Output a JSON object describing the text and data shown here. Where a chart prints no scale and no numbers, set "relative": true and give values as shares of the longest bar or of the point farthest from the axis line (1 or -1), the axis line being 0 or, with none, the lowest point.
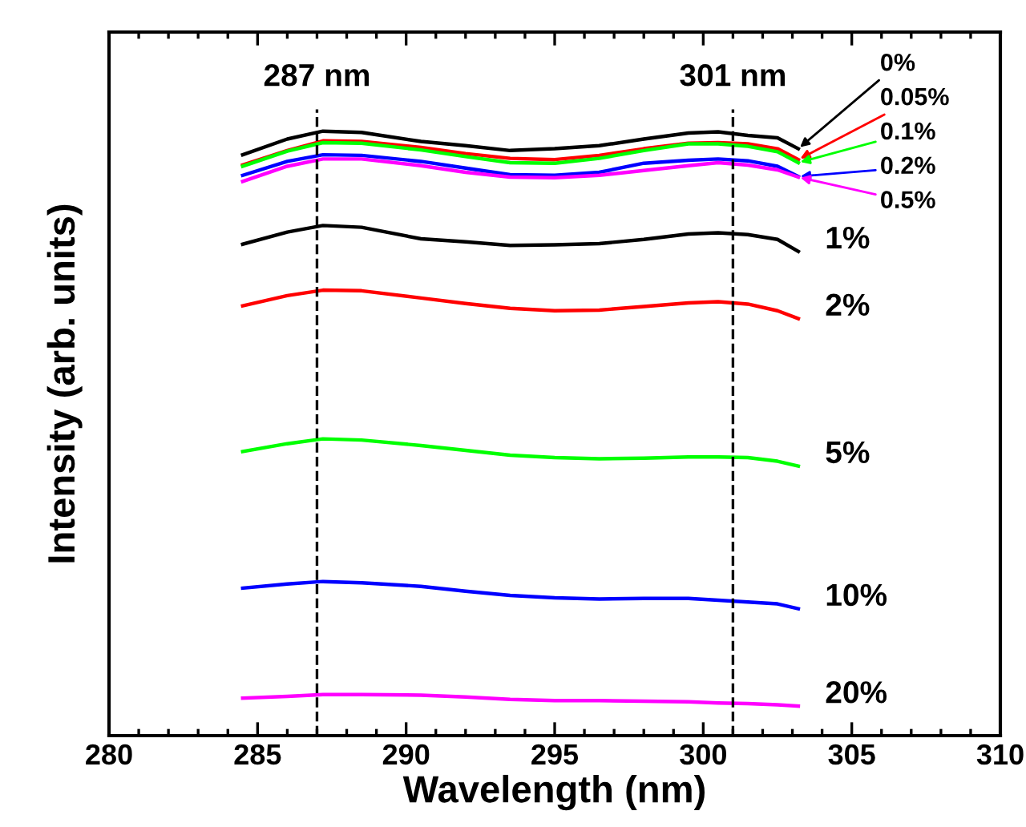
{
  "chart_data": {
    "type": "line",
    "relative": true,
    "xlabel": "Wavelength (nm)",
    "ylabel": "Intensity (arb. units)",
    "xlim": [
      280,
      310
    ],
    "xticks": [
      280,
      285,
      290,
      295,
      300,
      305,
      310
    ],
    "grid": false,
    "legend": "top right",
    "marker": "none",
    "line_style": "solid",
    "x": [
      284.5,
      286,
      287.2,
      288.5,
      290.5,
      292,
      293.5,
      295,
      296.5,
      298,
      299.5,
      300.5,
      301.5,
      302.5,
      303.2
    ],
    "series": [
      {
        "name": "0%",
        "color": "#000000",
        "values": [
          0.961,
          0.987,
          1.0,
          0.998,
          0.983,
          0.976,
          0.968,
          0.971,
          0.976,
          0.987,
          0.997,
          0.999,
          0.993,
          0.989,
          0.971
        ]
      },
      {
        "name": "0.05%",
        "color": "#ff0000",
        "values": [
          0.944,
          0.968,
          0.984,
          0.983,
          0.973,
          0.963,
          0.955,
          0.953,
          0.96,
          0.971,
          0.98,
          0.981,
          0.979,
          0.971,
          0.953
        ]
      },
      {
        "name": "0.1%",
        "color": "#00ff00",
        "values": [
          0.942,
          0.967,
          0.981,
          0.98,
          0.969,
          0.958,
          0.948,
          0.947,
          0.955,
          0.968,
          0.979,
          0.979,
          0.975,
          0.966,
          0.948
        ]
      },
      {
        "name": "0.2%",
        "color": "#0000ff",
        "values": [
          0.927,
          0.95,
          0.961,
          0.96,
          0.95,
          0.939,
          0.928,
          0.927,
          0.932,
          0.947,
          0.952,
          0.954,
          0.951,
          0.942,
          0.925
        ]
      },
      {
        "name": "0.5%",
        "color": "#ff00ff",
        "values": [
          0.917,
          0.942,
          0.954,
          0.954,
          0.943,
          0.932,
          0.924,
          0.923,
          0.927,
          0.935,
          0.943,
          0.948,
          0.944,
          0.936,
          0.924
        ]
      },
      {
        "name": "1%",
        "color": "#000000",
        "values": [
          0.813,
          0.833,
          0.844,
          0.841,
          0.822,
          0.817,
          0.811,
          0.812,
          0.814,
          0.821,
          0.83,
          0.832,
          0.829,
          0.821,
          0.801
        ]
      },
      {
        "name": "2%",
        "color": "#ff0000",
        "values": [
          0.711,
          0.728,
          0.737,
          0.736,
          0.724,
          0.715,
          0.707,
          0.703,
          0.704,
          0.71,
          0.716,
          0.718,
          0.714,
          0.703,
          0.69
        ]
      },
      {
        "name": "5%",
        "color": "#00ff00",
        "values": [
          0.47,
          0.483,
          0.491,
          0.489,
          0.48,
          0.472,
          0.464,
          0.46,
          0.458,
          0.459,
          0.461,
          0.461,
          0.46,
          0.454,
          0.446
        ]
      },
      {
        "name": "10%",
        "color": "#0000ff",
        "values": [
          0.244,
          0.251,
          0.255,
          0.253,
          0.247,
          0.239,
          0.232,
          0.228,
          0.226,
          0.227,
          0.227,
          0.224,
          0.221,
          0.218,
          0.21
        ]
      },
      {
        "name": "20%",
        "color": "#ff00ff",
        "values": [
          0.062,
          0.065,
          0.068,
          0.068,
          0.067,
          0.064,
          0.06,
          0.058,
          0.058,
          0.057,
          0.056,
          0.054,
          0.053,
          0.051,
          0.049
        ]
      }
    ],
    "ref_lines": [
      {
        "axis": "x",
        "value": 287,
        "label": "287 nm",
        "color": "#000000",
        "line_style": "dashed"
      },
      {
        "axis": "x",
        "value": 301,
        "label": "301 nm",
        "color": "#000000",
        "line_style": "dashed"
      }
    ]
  }
}
